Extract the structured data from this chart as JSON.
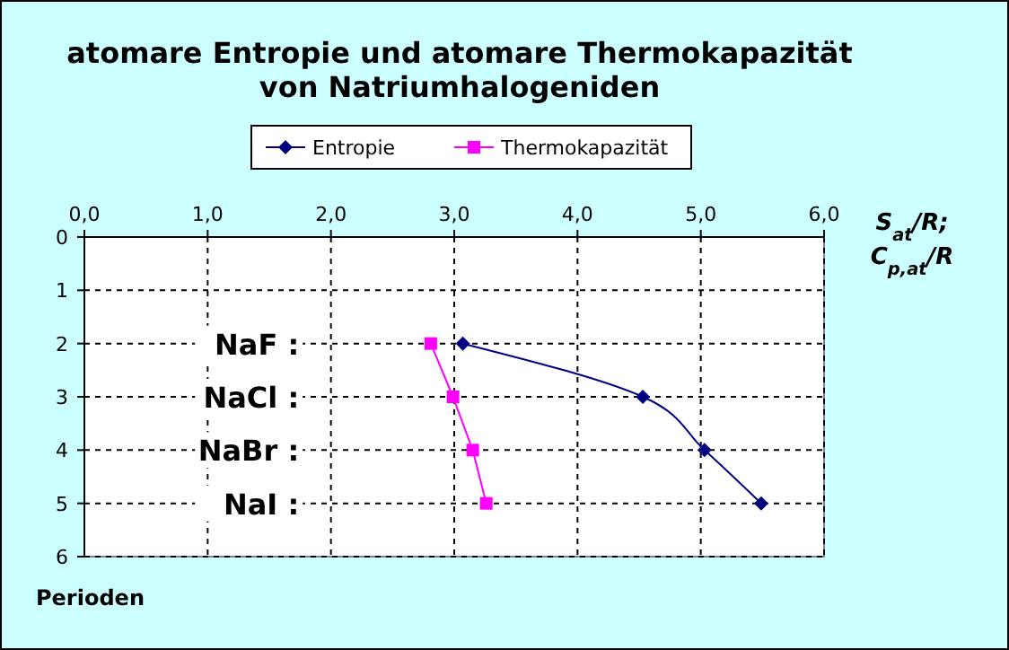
{
  "chart_data": {
    "type": "line",
    "title": "atomare Entropie und atomare Thermokapazität\nvon Natriumhalogeniden",
    "xlabel": "S$_{at}$/R; C$_{p,at}$/R",
    "ylabel": "Perioden",
    "xlim": [
      0,
      6
    ],
    "xticks": [
      {
        "value": 0,
        "label": "0,0"
      },
      {
        "value": 1,
        "label": "1,0"
      },
      {
        "value": 2,
        "label": "2,0"
      },
      {
        "value": 3,
        "label": "3,0"
      },
      {
        "value": 4,
        "label": "4,0"
      },
      {
        "value": 5,
        "label": "5,0"
      },
      {
        "value": 6,
        "label": "6,0"
      }
    ],
    "ylim": [
      6,
      0
    ],
    "yticks": [
      0,
      1,
      2,
      3,
      4,
      5,
      6
    ],
    "grid": true,
    "legend": "top",
    "line_style": "solid",
    "series": [
      {
        "name": "Entropie",
        "color": "#000080",
        "marker": "diamond",
        "x": [
          3.07,
          4.53,
          5.03,
          5.49
        ],
        "values": [
          2,
          3,
          4,
          5
        ]
      },
      {
        "name": "Thermokapazität",
        "color": "#ff00ff",
        "marker": "square",
        "x": [
          2.81,
          2.99,
          3.15,
          3.26
        ],
        "values": [
          2,
          3,
          4,
          5
        ]
      }
    ],
    "annotations": [
      "NaF :",
      "NaCl :",
      "NaBr :",
      "NaI :"
    ]
  }
}
